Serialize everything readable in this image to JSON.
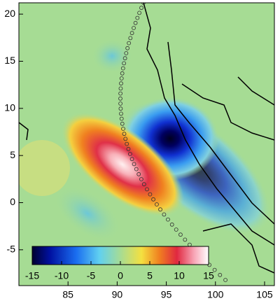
{
  "chart_data": {
    "type": "heatmap",
    "xlim": [
      80,
      106
    ],
    "ylim": [
      -8.8,
      21.2
    ],
    "xticks": [
      85,
      90,
      95,
      100,
      105
    ],
    "yticks": [
      -5,
      0,
      5,
      10,
      15,
      20
    ],
    "colorbar": {
      "lim": [
        -15,
        15
      ],
      "ticks": [
        -15,
        -10,
        -5,
        0,
        5,
        10,
        15
      ]
    }
  }
}
